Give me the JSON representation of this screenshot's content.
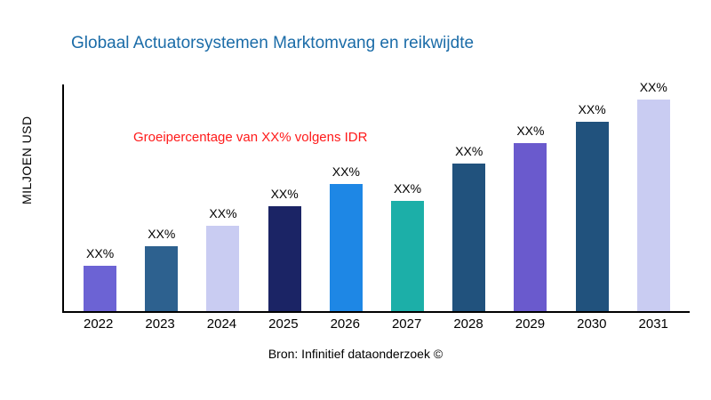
{
  "title": "Globaal Actuatorsystemen Marktomvang en reikwijdte",
  "ylabel": "MILJOEN USD",
  "annotation": "Groeipercentage van XX% volgens IDR",
  "source": "Bron: Infinitief dataonderzoek ©",
  "colors": {
    "title_color": "#1b6ca8",
    "annotation_color": "#ff1a1a"
  },
  "chart_data": {
    "type": "bar",
    "title": "Globaal Actuatorsystemen Marktomvang en reikwijdte",
    "xlabel": "",
    "ylabel": "MILJOEN USD",
    "categories": [
      "2022",
      "2023",
      "2024",
      "2025",
      "2026",
      "2027",
      "2028",
      "2029",
      "2030",
      "2031"
    ],
    "values": [
      50,
      72,
      94,
      116,
      140,
      122,
      163,
      185,
      209,
      233
    ],
    "ylim": [
      0,
      250
    ],
    "bar_labels": [
      "XX%",
      "XX%",
      "XX%",
      "XX%",
      "XX%",
      "XX%",
      "XX%",
      "XX%",
      "XX%",
      "XX%"
    ],
    "bar_colors": [
      "#6c63d4",
      "#2d618f",
      "#c9ccf2",
      "#1b2465",
      "#1e87e5",
      "#1cafa8",
      "#21527d",
      "#6a5acd",
      "#21527d",
      "#c9ccf2"
    ],
    "grid": false,
    "legend": "none",
    "annotations": [
      "Groeipercentage van XX% volgens IDR"
    ]
  }
}
